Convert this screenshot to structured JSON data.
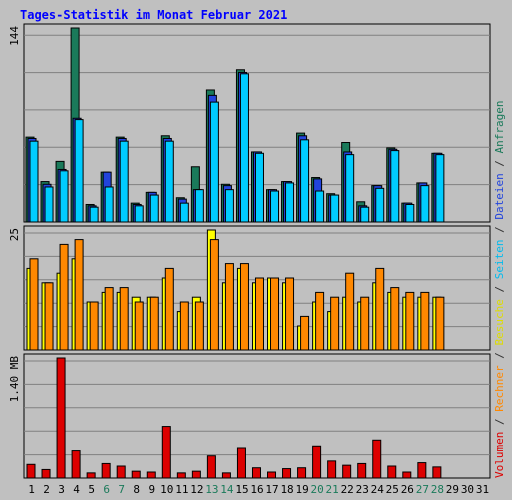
{
  "chart_data": [
    {
      "type": "bar",
      "panel": "top",
      "title": "Tages-Statistik im Monat Februar 2021",
      "ylabel_max": "144",
      "ylim": [
        0,
        144
      ],
      "categories": [
        "1",
        "2",
        "3",
        "4",
        "5",
        "6",
        "7",
        "8",
        "9",
        "10",
        "11",
        "12",
        "13",
        "14",
        "15",
        "16",
        "17",
        "18",
        "19",
        "20",
        "21",
        "22",
        "23",
        "24",
        "25",
        "26",
        "27",
        "28",
        "29",
        "30",
        "31"
      ],
      "series": [
        {
          "name": "Anfragen",
          "color": "#1a7a5a",
          "values": [
            63,
            30,
            45,
            144,
            13,
            37,
            63,
            14,
            22,
            64,
            18,
            41,
            98,
            28,
            113,
            52,
            24,
            30,
            66,
            33,
            21,
            59,
            15,
            27,
            55,
            14,
            29,
            51,
            0,
            0,
            0
          ]
        },
        {
          "name": "Dateien",
          "color": "#2244dd",
          "values": [
            62,
            28,
            39,
            77,
            12,
            37,
            62,
            13,
            22,
            62,
            17,
            24,
            94,
            27,
            111,
            52,
            24,
            30,
            64,
            32,
            20,
            52,
            12,
            27,
            54,
            14,
            29,
            51,
            0,
            0,
            0
          ]
        },
        {
          "name": "Seiten",
          "color": "#00ccff",
          "values": [
            60,
            26,
            38,
            76,
            11,
            26,
            60,
            12,
            20,
            60,
            14,
            24,
            89,
            24,
            110,
            51,
            23,
            29,
            61,
            23,
            20,
            50,
            11,
            25,
            53,
            13,
            27,
            50,
            0,
            0,
            0
          ]
        }
      ]
    },
    {
      "type": "bar",
      "panel": "middle",
      "ylabel_max": "25",
      "ylim": [
        0,
        25
      ],
      "series": [
        {
          "name": "Besuche",
          "color": "#ffff00",
          "values": [
            17,
            14,
            16,
            19,
            10,
            12,
            12,
            11,
            11,
            15,
            8,
            11,
            25,
            14,
            17,
            14,
            15,
            14,
            5,
            10,
            8,
            11,
            10,
            14,
            12,
            11,
            11,
            11,
            0,
            0,
            0
          ]
        },
        {
          "name": "Rechner",
          "color": "#ff8800",
          "values": [
            19,
            14,
            22,
            23,
            10,
            13,
            13,
            10,
            11,
            17,
            10,
            10,
            23,
            18,
            18,
            15,
            15,
            15,
            7,
            12,
            11,
            16,
            11,
            17,
            13,
            12,
            12,
            11,
            0,
            0,
            0
          ]
        }
      ]
    },
    {
      "type": "bar",
      "panel": "bottom",
      "ylabel_max": "1.40 MB",
      "ylim": [
        0,
        1.4
      ],
      "series": [
        {
          "name": "Volumen",
          "color": "#dd0000",
          "values": [
            0.16,
            0.1,
            1.4,
            0.32,
            0.06,
            0.17,
            0.14,
            0.08,
            0.07,
            0.6,
            0.06,
            0.08,
            0.26,
            0.06,
            0.35,
            0.12,
            0.07,
            0.11,
            0.12,
            0.37,
            0.2,
            0.15,
            0.17,
            0.44,
            0.14,
            0.07,
            0.18,
            0.13,
            0,
            0,
            0
          ]
        }
      ]
    }
  ],
  "side_legend": [
    {
      "text": "Volumen",
      "color": "#dd0000"
    },
    {
      "text": " / ",
      "color": "#333333"
    },
    {
      "text": "Rechner",
      "color": "#ff8800"
    },
    {
      "text": " / ",
      "color": "#333333"
    },
    {
      "text": "Besuche",
      "color": "#dddd00"
    },
    {
      "text": " / ",
      "color": "#333333"
    },
    {
      "text": "Seiten",
      "color": "#00bbee"
    },
    {
      "text": " / ",
      "color": "#333333"
    },
    {
      "text": "Dateien",
      "color": "#2244dd"
    },
    {
      "text": " / ",
      "color": "#333333"
    },
    {
      "text": "Anfragen",
      "color": "#1a7a5a"
    }
  ],
  "x_labels": [
    {
      "text": "1",
      "color": "#000000"
    },
    {
      "text": "2",
      "color": "#000000"
    },
    {
      "text": "3",
      "color": "#000000"
    },
    {
      "text": "4",
      "color": "#000000"
    },
    {
      "text": "5",
      "color": "#000000"
    },
    {
      "text": "6",
      "color": "#1a7a5a"
    },
    {
      "text": "7",
      "color": "#1a7a5a"
    },
    {
      "text": "8",
      "color": "#000000"
    },
    {
      "text": "9",
      "color": "#000000"
    },
    {
      "text": "10",
      "color": "#000000"
    },
    {
      "text": "11",
      "color": "#000000"
    },
    {
      "text": "12",
      "color": "#000000"
    },
    {
      "text": "13",
      "color": "#1a7a5a"
    },
    {
      "text": "14",
      "color": "#1a7a5a"
    },
    {
      "text": "15",
      "color": "#000000"
    },
    {
      "text": "16",
      "color": "#000000"
    },
    {
      "text": "17",
      "color": "#000000"
    },
    {
      "text": "18",
      "color": "#000000"
    },
    {
      "text": "19",
      "color": "#000000"
    },
    {
      "text": "20",
      "color": "#1a7a5a"
    },
    {
      "text": "21",
      "color": "#1a7a5a"
    },
    {
      "text": "22",
      "color": "#000000"
    },
    {
      "text": "23",
      "color": "#000000"
    },
    {
      "text": "24",
      "color": "#000000"
    },
    {
      "text": "25",
      "color": "#000000"
    },
    {
      "text": "26",
      "color": "#000000"
    },
    {
      "text": "27",
      "color": "#1a7a5a"
    },
    {
      "text": "28",
      "color": "#1a7a5a"
    },
    {
      "text": "29",
      "color": "#000000"
    },
    {
      "text": "30",
      "color": "#000000"
    },
    {
      "text": "31",
      "color": "#000000"
    }
  ],
  "colors": {
    "background": "#c0c0c0",
    "title": "#0000ff",
    "grid": "#808080",
    "bar_outline": "#000000"
  }
}
